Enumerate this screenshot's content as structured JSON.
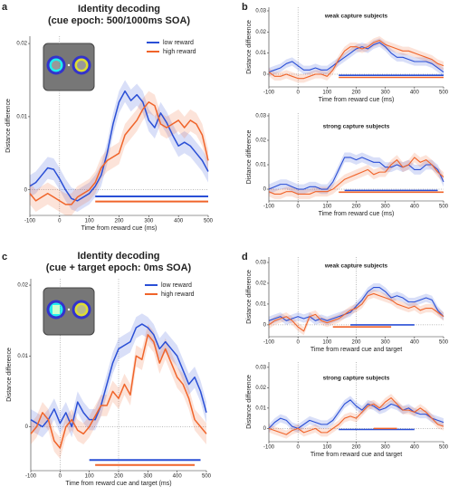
{
  "panel_labels": [
    "a",
    "b",
    "c",
    "d"
  ],
  "chart_data": [
    {
      "type": "line",
      "title": "Identity decoding",
      "subtitle": "(cue epoch: 500/1000ms SOA)",
      "xlabel": "Time from reward cue (ms)",
      "ylabel": "Distance difference",
      "x": [
        -100,
        -80,
        -60,
        -40,
        -20,
        0,
        20,
        40,
        60,
        80,
        100,
        120,
        140,
        160,
        180,
        200,
        220,
        240,
        260,
        280,
        300,
        320,
        340,
        360,
        380,
        400,
        420,
        440,
        460,
        480,
        500
      ],
      "xlim": [
        -100,
        500
      ],
      "xticks": [
        -100,
        0,
        100,
        200,
        300,
        400,
        500
      ],
      "ylim": [
        -0.0035,
        0.021
      ],
      "yticks": [
        0,
        0.01,
        0.02
      ],
      "vlines": [
        0
      ],
      "legend": "upper right",
      "series": [
        {
          "name": "low reward",
          "color": "#2a4fd6",
          "error": 0.0015,
          "values": [
            0.0005,
            0.001,
            0.002,
            0.003,
            0.0028,
            0.0015,
            0,
            -0.0012,
            -0.0015,
            -0.001,
            -0.0005,
            0.0005,
            0.002,
            0.005,
            0.009,
            0.012,
            0.0135,
            0.0122,
            0.013,
            0.012,
            0.0095,
            0.0085,
            0.0105,
            0.0092,
            0.0075,
            0.006,
            0.0065,
            0.006,
            0.005,
            0.004,
            0.0025
          ]
        },
        {
          "name": "high reward",
          "color": "#f0642a",
          "error": 0.0015,
          "values": [
            -0.0005,
            -0.0015,
            -0.001,
            -0.0005,
            -0.001,
            -0.0015,
            -0.002,
            -0.002,
            -0.001,
            -0.0005,
            0,
            0.001,
            0.003,
            0.004,
            0.0045,
            0.005,
            0.0075,
            0.0085,
            0.0095,
            0.011,
            0.012,
            0.0115,
            0.009,
            0.0085,
            0.009,
            0.0095,
            0.0085,
            0.0095,
            0.009,
            0.0075,
            0.004
          ]
        }
      ],
      "sig_bars": [
        {
          "color": "#2a4fd6",
          "x": [
            120,
            500
          ],
          "y": -0.0009
        },
        {
          "color": "#f0642a",
          "x": [
            120,
            500
          ],
          "y": -0.0016
        }
      ]
    },
    {
      "type": "line",
      "title": "weak capture subjects",
      "xlabel": "Time from reward cue (ms)",
      "ylabel": "Distance difference",
      "x": [
        -100,
        -80,
        -60,
        -40,
        -20,
        0,
        20,
        40,
        60,
        80,
        100,
        120,
        140,
        160,
        180,
        200,
        220,
        240,
        260,
        280,
        300,
        320,
        340,
        360,
        380,
        400,
        420,
        440,
        460,
        480,
        500
      ],
      "xlim": [
        -100,
        500
      ],
      "xticks": [
        -100,
        0,
        100,
        200,
        300,
        400,
        500
      ],
      "ylim": [
        -0.006,
        0.0317
      ],
      "yticks": [
        0,
        0.01,
        0.02,
        0.03
      ],
      "vlines": [
        0
      ],
      "series": [
        {
          "color": "#2a4fd6",
          "error": 0.002,
          "values": [
            0.001,
            0.002,
            0.003,
            0.005,
            0.006,
            0.004,
            0.002,
            0.002,
            0.003,
            0.002,
            0.002,
            0.004,
            0.006,
            0.008,
            0.01,
            0.012,
            0.013,
            0.012,
            0.014,
            0.015,
            0.013,
            0.01,
            0.008,
            0.008,
            0.007,
            0.006,
            0.006,
            0.006,
            0.005,
            0.003,
            0.001
          ]
        },
        {
          "color": "#f0642a",
          "error": 0.002,
          "values": [
            0.001,
            -0.001,
            -0.001,
            0,
            -0.001,
            -0.002,
            -0.002,
            -0.001,
            0,
            0,
            -0.001,
            0.002,
            0.007,
            0.011,
            0.013,
            0.013,
            0.012,
            0.013,
            0.015,
            0.016,
            0.014,
            0.013,
            0.012,
            0.011,
            0.011,
            0.01,
            0.009,
            0.008,
            0.007,
            0.005,
            0.004
          ]
        }
      ],
      "sig_bars": [
        {
          "color": "#2a4fd6",
          "x": [
            140,
            500
          ],
          "y": -0.0005
        },
        {
          "color": "#f0642a",
          "x": [
            140,
            500
          ],
          "y": -0.0015
        }
      ]
    },
    {
      "type": "line",
      "title": "strong capture subjects",
      "xlabel": "Time from reward cue (ms)",
      "ylabel": "Distance difference",
      "x": [
        -100,
        -80,
        -60,
        -40,
        -20,
        0,
        20,
        40,
        60,
        80,
        100,
        120,
        140,
        160,
        180,
        200,
        220,
        240,
        260,
        280,
        300,
        320,
        340,
        360,
        380,
        400,
        420,
        440,
        460,
        480,
        500
      ],
      "xlim": [
        -100,
        500
      ],
      "xticks": [
        -100,
        0,
        100,
        200,
        300,
        400,
        500
      ],
      "ylim": [
        -0.0048,
        0.0311
      ],
      "yticks": [
        0,
        0.01,
        0.02,
        0.03
      ],
      "vlines": [
        0
      ],
      "series": [
        {
          "color": "#2a4fd6",
          "error": 0.002,
          "values": [
            0,
            0.001,
            0.002,
            0.002,
            0.001,
            0,
            0,
            0.001,
            0.001,
            0,
            0,
            0.003,
            0.008,
            0.013,
            0.013,
            0.012,
            0.013,
            0.012,
            0.011,
            0.011,
            0.009,
            0.009,
            0.01,
            0.009,
            0.01,
            0.008,
            0.008,
            0.01,
            0.01,
            0.008,
            0.003
          ]
        },
        {
          "color": "#f0642a",
          "error": 0.002,
          "values": [
            -0.001,
            -0.002,
            -0.002,
            -0.001,
            -0.001,
            -0.002,
            -0.002,
            -0.002,
            -0.001,
            -0.001,
            -0.001,
            0,
            0.002,
            0.004,
            0.005,
            0.006,
            0.007,
            0.008,
            0.006,
            0.007,
            0.007,
            0.01,
            0.012,
            0.009,
            0.01,
            0.013,
            0.011,
            0.012,
            0.01,
            0.007,
            0.005
          ]
        }
      ],
      "sig_bars": [
        {
          "color": "#2a4fd6",
          "x": [
            160,
            480
          ],
          "y": -0.0005
        },
        {
          "color": "#f0642a",
          "x": [
            140,
            500
          ],
          "y": -0.0012
        }
      ]
    },
    {
      "type": "line",
      "title": "Identity decoding",
      "subtitle": "(cue + target epoch: 0ms SOA)",
      "xlabel": "Time from reward cue and target (ms)",
      "ylabel": "Distance difference",
      "x": [
        -100,
        -80,
        -60,
        -40,
        -20,
        0,
        20,
        40,
        60,
        80,
        100,
        120,
        140,
        160,
        180,
        200,
        220,
        240,
        260,
        280,
        300,
        320,
        340,
        360,
        380,
        400,
        420,
        440,
        460,
        480,
        500
      ],
      "xlim": [
        -100,
        500
      ],
      "xticks": [
        -100,
        0,
        100,
        200,
        300,
        400,
        500
      ],
      "ylim": [
        -0.0062,
        0.0209
      ],
      "yticks": [
        0,
        0.01,
        0.02
      ],
      "vlines": [
        0,
        200
      ],
      "legend": "upper right",
      "series": [
        {
          "name": "low reward",
          "color": "#2a4fd6",
          "error": 0.0015,
          "values": [
            0.001,
            0.0005,
            0,
            0.001,
            0.0025,
            0.0005,
            0.002,
            0,
            0.0035,
            0.002,
            0.001,
            0.001,
            0.003,
            0.006,
            0.009,
            0.011,
            0.0115,
            0.012,
            0.014,
            0.0145,
            0.014,
            0.013,
            0.011,
            0.012,
            0.011,
            0.01,
            0.008,
            0.006,
            0.007,
            0.005,
            0.002
          ]
        },
        {
          "name": "high reward",
          "color": "#f0642a",
          "error": 0.0015,
          "values": [
            -0.001,
            0,
            0.002,
            0.001,
            -0.002,
            -0.003,
            0,
            0.001,
            -0.0005,
            -0.001,
            0,
            0.0015,
            0.003,
            0.003,
            0.005,
            0.004,
            0.006,
            0.0045,
            0.01,
            0.0095,
            0.013,
            0.012,
            0.009,
            0.011,
            0.009,
            0.007,
            0.006,
            0.004,
            0.001,
            0,
            -0.001
          ]
        }
      ],
      "sig_bars": [
        {
          "color": "#2a4fd6",
          "x": [
            100,
            480
          ],
          "y": -0.0047
        },
        {
          "color": "#f0642a",
          "x": [
            120,
            460
          ],
          "y": -0.0054
        }
      ]
    },
    {
      "type": "line",
      "title": "weak capture subjects",
      "xlabel": "Time from reward cue and target",
      "ylabel": "Distance difference",
      "x": [
        -100,
        -80,
        -60,
        -40,
        -20,
        0,
        20,
        40,
        60,
        80,
        100,
        120,
        140,
        160,
        180,
        200,
        220,
        240,
        260,
        280,
        300,
        320,
        340,
        360,
        380,
        400,
        420,
        440,
        460,
        480,
        500
      ],
      "xlim": [
        -100,
        500
      ],
      "xticks": [
        -100,
        0,
        100,
        200,
        300,
        400,
        500
      ],
      "ylim": [
        -0.0057,
        0.0326
      ],
      "yticks": [
        0,
        0.01,
        0.02,
        0.03
      ],
      "vlines": [
        0,
        200
      ],
      "series": [
        {
          "color": "#2a4fd6",
          "error": 0.002,
          "values": [
            0.002,
            0.003,
            0.004,
            0.002,
            0.003,
            0.004,
            0.003,
            0.004,
            0.002,
            0.003,
            0.002,
            0.003,
            0.004,
            0.005,
            0.006,
            0.009,
            0.012,
            0.016,
            0.018,
            0.018,
            0.016,
            0.013,
            0.014,
            0.013,
            0.011,
            0.011,
            0.012,
            0.013,
            0.012,
            0.007,
            0.004
          ]
        },
        {
          "color": "#f0642a",
          "error": 0.002,
          "values": [
            0,
            0.002,
            0.003,
            0.004,
            0.002,
            -0.001,
            -0.003,
            0.004,
            0.005,
            0.002,
            0.001,
            0.002,
            0.003,
            0.005,
            0.007,
            0.008,
            0.01,
            0.014,
            0.015,
            0.014,
            0.013,
            0.012,
            0.01,
            0.009,
            0.008,
            0.009,
            0.007,
            0.008,
            0.008,
            0.006,
            0.004
          ]
        }
      ],
      "sig_bars": [
        {
          "color": "#f0642a",
          "x": [
            120,
            320
          ],
          "y": -0.001
        },
        {
          "color": "#2a4fd6",
          "x": [
            180,
            400
          ],
          "y": 0
        }
      ]
    },
    {
      "type": "line",
      "title": "strong capture subjects",
      "xlabel": "Time from reward cue and target",
      "ylabel": "Distance difference",
      "x": [
        -100,
        -80,
        -60,
        -40,
        -20,
        0,
        20,
        40,
        60,
        80,
        100,
        120,
        140,
        160,
        180,
        200,
        220,
        240,
        260,
        280,
        300,
        320,
        340,
        360,
        380,
        400,
        420,
        440,
        460,
        480,
        500
      ],
      "xlim": [
        -100,
        500
      ],
      "xticks": [
        -100,
        0,
        100,
        200,
        300,
        400,
        500
      ],
      "ylim": [
        -0.0065,
        0.0326
      ],
      "yticks": [
        0,
        0.01,
        0.02,
        0.03
      ],
      "vlines": [
        0,
        200
      ],
      "series": [
        {
          "color": "#2a4fd6",
          "error": 0.002,
          "values": [
            0,
            0.003,
            0.005,
            0.004,
            0.001,
            0,
            0.002,
            0.004,
            0.003,
            0.002,
            0.002,
            0.004,
            0.008,
            0.012,
            0.014,
            0.011,
            0.009,
            0.012,
            0.011,
            0.009,
            0.01,
            0.012,
            0.011,
            0.009,
            0.01,
            0.008,
            0.007,
            0.007,
            0.005,
            0.004,
            0.003
          ]
        },
        {
          "color": "#f0642a",
          "error": 0.002,
          "values": [
            0,
            -0.001,
            -0.002,
            -0.003,
            -0.001,
            0,
            -0.002,
            -0.001,
            0,
            -0.002,
            -0.002,
            0,
            0.002,
            0.005,
            0.006,
            0.005,
            0.008,
            0.011,
            0.012,
            0.01,
            0.013,
            0.015,
            0.012,
            0.009,
            0.009,
            0.008,
            0.01,
            0.008,
            0.005,
            0.002,
            0.001
          ]
        }
      ],
      "sig_bars": [
        {
          "color": "#2a4fd6",
          "x": [
            140,
            400
          ],
          "y": -0.0005
        },
        {
          "color": "#f0642a",
          "x": [
            260,
            340
          ],
          "y": 0
        }
      ]
    }
  ]
}
